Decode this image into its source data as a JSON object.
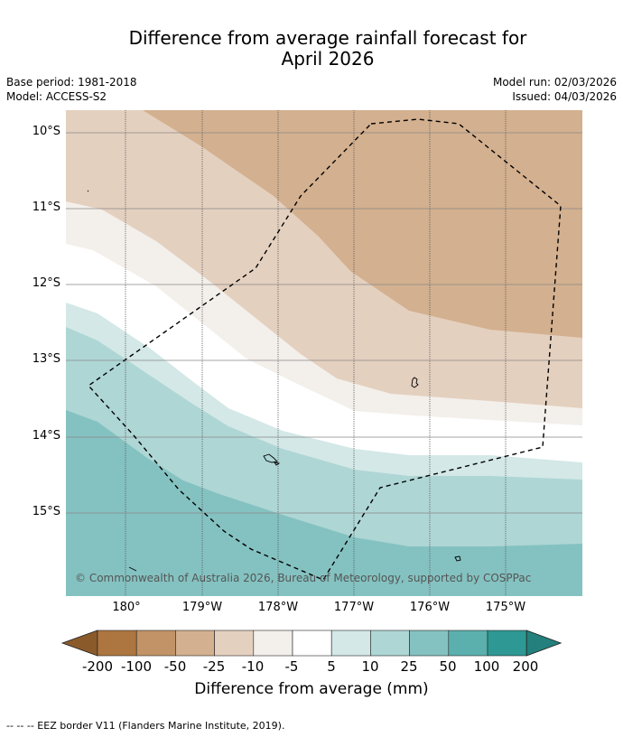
{
  "title_line1": "Difference from average rainfall forecast for",
  "title_line2": "April 2026",
  "meta": {
    "base_period": "Base period: 1981-2018",
    "model": "Model: ACCESS-S2",
    "model_run": "Model run: 02/03/2026",
    "issued": "Issued: 04/03/2026"
  },
  "lat_labels": [
    "10°S",
    "11°S",
    "12°S",
    "13°S",
    "14°S",
    "15°S"
  ],
  "lon_labels": [
    "180°",
    "179°W",
    "178°W",
    "177°W",
    "176°W",
    "175°W"
  ],
  "copyright": "© Commonwealth of Australia 2026, Bureau of Meteorology, supported by COSPPac",
  "colorbar": {
    "ticks": [
      "-200",
      "-100",
      "-50",
      "-25",
      "-10",
      "-5",
      "5",
      "10",
      "25",
      "50",
      "100",
      "200"
    ],
    "label": "Difference from average (mm)",
    "colors": [
      "#8b5a2b",
      "#ad7640",
      "#c19366",
      "#d3b08f",
      "#e4d0bf",
      "#f3efea",
      "#ffffff",
      "#d3e8e7",
      "#aed6d5",
      "#84c2c1",
      "#5bb0ae",
      "#2e9894",
      "#23807c"
    ]
  },
  "source_note": "--  --  -- EEZ border V11 (Flanders Marine Institute, 2019)."
}
